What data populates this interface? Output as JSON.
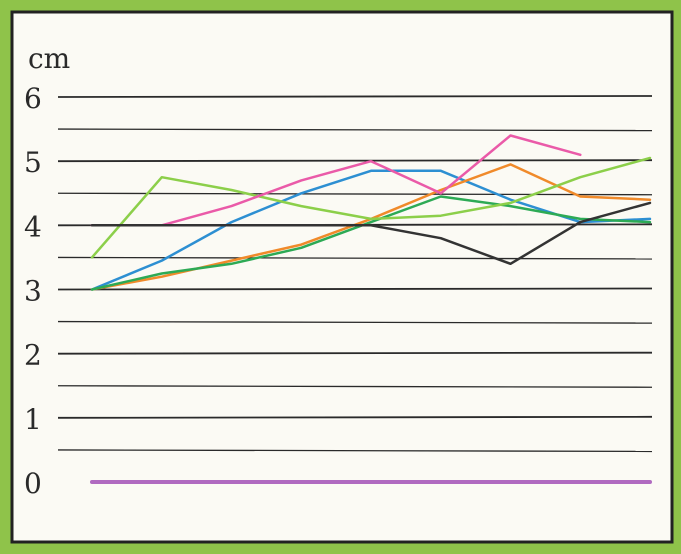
{
  "chart_data": {
    "type": "line",
    "title": "",
    "xlabel": "",
    "ylabel": "cm",
    "ylim": [
      0,
      6
    ],
    "yticks": [
      "0",
      "1",
      "2",
      "3",
      "4",
      "5",
      "6"
    ],
    "grid": true,
    "x": [
      0,
      1,
      2,
      3,
      4,
      5,
      6,
      7,
      8
    ],
    "series": [
      {
        "color": "#2d8fd2",
        "values": [
          3.0,
          3.45,
          4.05,
          4.5,
          4.85,
          4.85,
          4.4,
          4.05,
          4.1
        ]
      },
      {
        "color": "#f08a2a",
        "values": [
          3.0,
          3.2,
          3.45,
          3.7,
          4.1,
          4.55,
          4.95,
          4.45,
          4.4
        ]
      },
      {
        "color": "#2daa55",
        "values": [
          3.0,
          3.25,
          3.4,
          3.65,
          4.05,
          4.45,
          4.3,
          4.1,
          4.05
        ]
      },
      {
        "color": "#8ccf4a",
        "values": [
          3.5,
          4.75,
          4.55,
          4.3,
          4.1,
          4.15,
          4.35,
          4.75,
          5.05
        ]
      },
      {
        "color": "#ea5aa8",
        "values": [
          4.0,
          4.0,
          4.3,
          4.7,
          5.0,
          4.5,
          5.4,
          5.1,
          null
        ]
      },
      {
        "color": "#333333",
        "values": [
          4.0,
          4.0,
          4.0,
          4.0,
          4.0,
          3.8,
          3.4,
          4.05,
          4.35
        ]
      },
      {
        "color": "#b06ac0",
        "values": [
          0,
          0,
          0,
          0,
          0,
          0,
          0,
          0,
          0
        ]
      }
    ]
  }
}
